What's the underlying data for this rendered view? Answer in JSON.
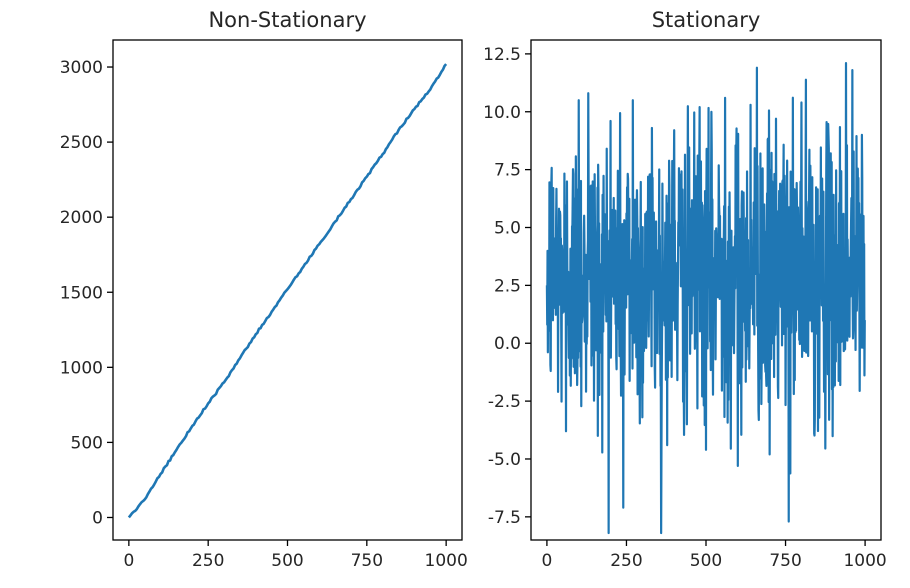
{
  "chart_data": [
    {
      "type": "line",
      "title": "Non-Stationary",
      "xlabel": "",
      "ylabel": "",
      "xlim": [
        -50,
        1050
      ],
      "ylim": [
        -150,
        3180
      ],
      "xticks": [
        0,
        250,
        500,
        750,
        1000
      ],
      "xtick_labels": [
        "0",
        "250",
        "500",
        "750",
        "1000"
      ],
      "yticks": [
        0,
        500,
        1000,
        1500,
        2000,
        2500,
        3000
      ],
      "ytick_labels": [
        "0",
        "500",
        "1000",
        "1500",
        "2000",
        "2500",
        "3000"
      ],
      "grid": false,
      "color": "#1f77b4",
      "series": [
        {
          "x": [
            0,
            50,
            100,
            150,
            200,
            250,
            300,
            350,
            400,
            450,
            500,
            550,
            600,
            650,
            700,
            750,
            800,
            850,
            900,
            950,
            1000
          ],
          "values": [
            0,
            120,
            290,
            450,
            610,
            760,
            900,
            1060,
            1220,
            1370,
            1520,
            1670,
            1820,
            1970,
            2120,
            2270,
            2420,
            2580,
            2720,
            2850,
            3020
          ]
        }
      ]
    },
    {
      "type": "line",
      "title": "Stationary",
      "xlabel": "",
      "ylabel": "",
      "xlim": [
        -50,
        1050
      ],
      "ylim": [
        -8.5,
        13.1
      ],
      "xticks": [
        0,
        250,
        500,
        750,
        1000
      ],
      "xtick_labels": [
        "0",
        "250",
        "500",
        "750",
        "1000"
      ],
      "yticks": [
        -7.5,
        -5.0,
        -2.5,
        0.0,
        2.5,
        5.0,
        7.5,
        10.0,
        12.5
      ],
      "ytick_labels": [
        "-7.5",
        "-5.0",
        "-2.5",
        "0.0",
        "2.5",
        "5.0",
        "7.5",
        "10.0",
        "12.5"
      ],
      "grid": false,
      "color": "#1f77b4",
      "noise": {
        "n_points": 1000,
        "mean": 3.0,
        "std": 3.0
      },
      "series": [
        {
          "x": [
            0,
            20,
            60,
            100,
            130,
            160,
            200,
            240,
            270,
            300,
            330,
            360,
            400,
            440,
            480,
            500,
            560,
            600,
            640,
            660,
            700,
            720,
            760,
            800,
            840,
            880,
            900,
            940,
            960,
            990,
            1000
          ],
          "values": [
            2.5,
            6.7,
            -3.8,
            10.5,
            10.8,
            -4.0,
            9.6,
            -7.1,
            10.5,
            -3.2,
            9.3,
            -4.7,
            9.2,
            -3.5,
            10.2,
            -4.6,
            10.6,
            -5.3,
            10.3,
            11.9,
            -4.8,
            9.7,
            -7.7,
            10.4,
            -3.9,
            9.3,
            -1.9,
            12.1,
            11.8,
            9.0,
            5.0
          ]
        }
      ]
    }
  ]
}
